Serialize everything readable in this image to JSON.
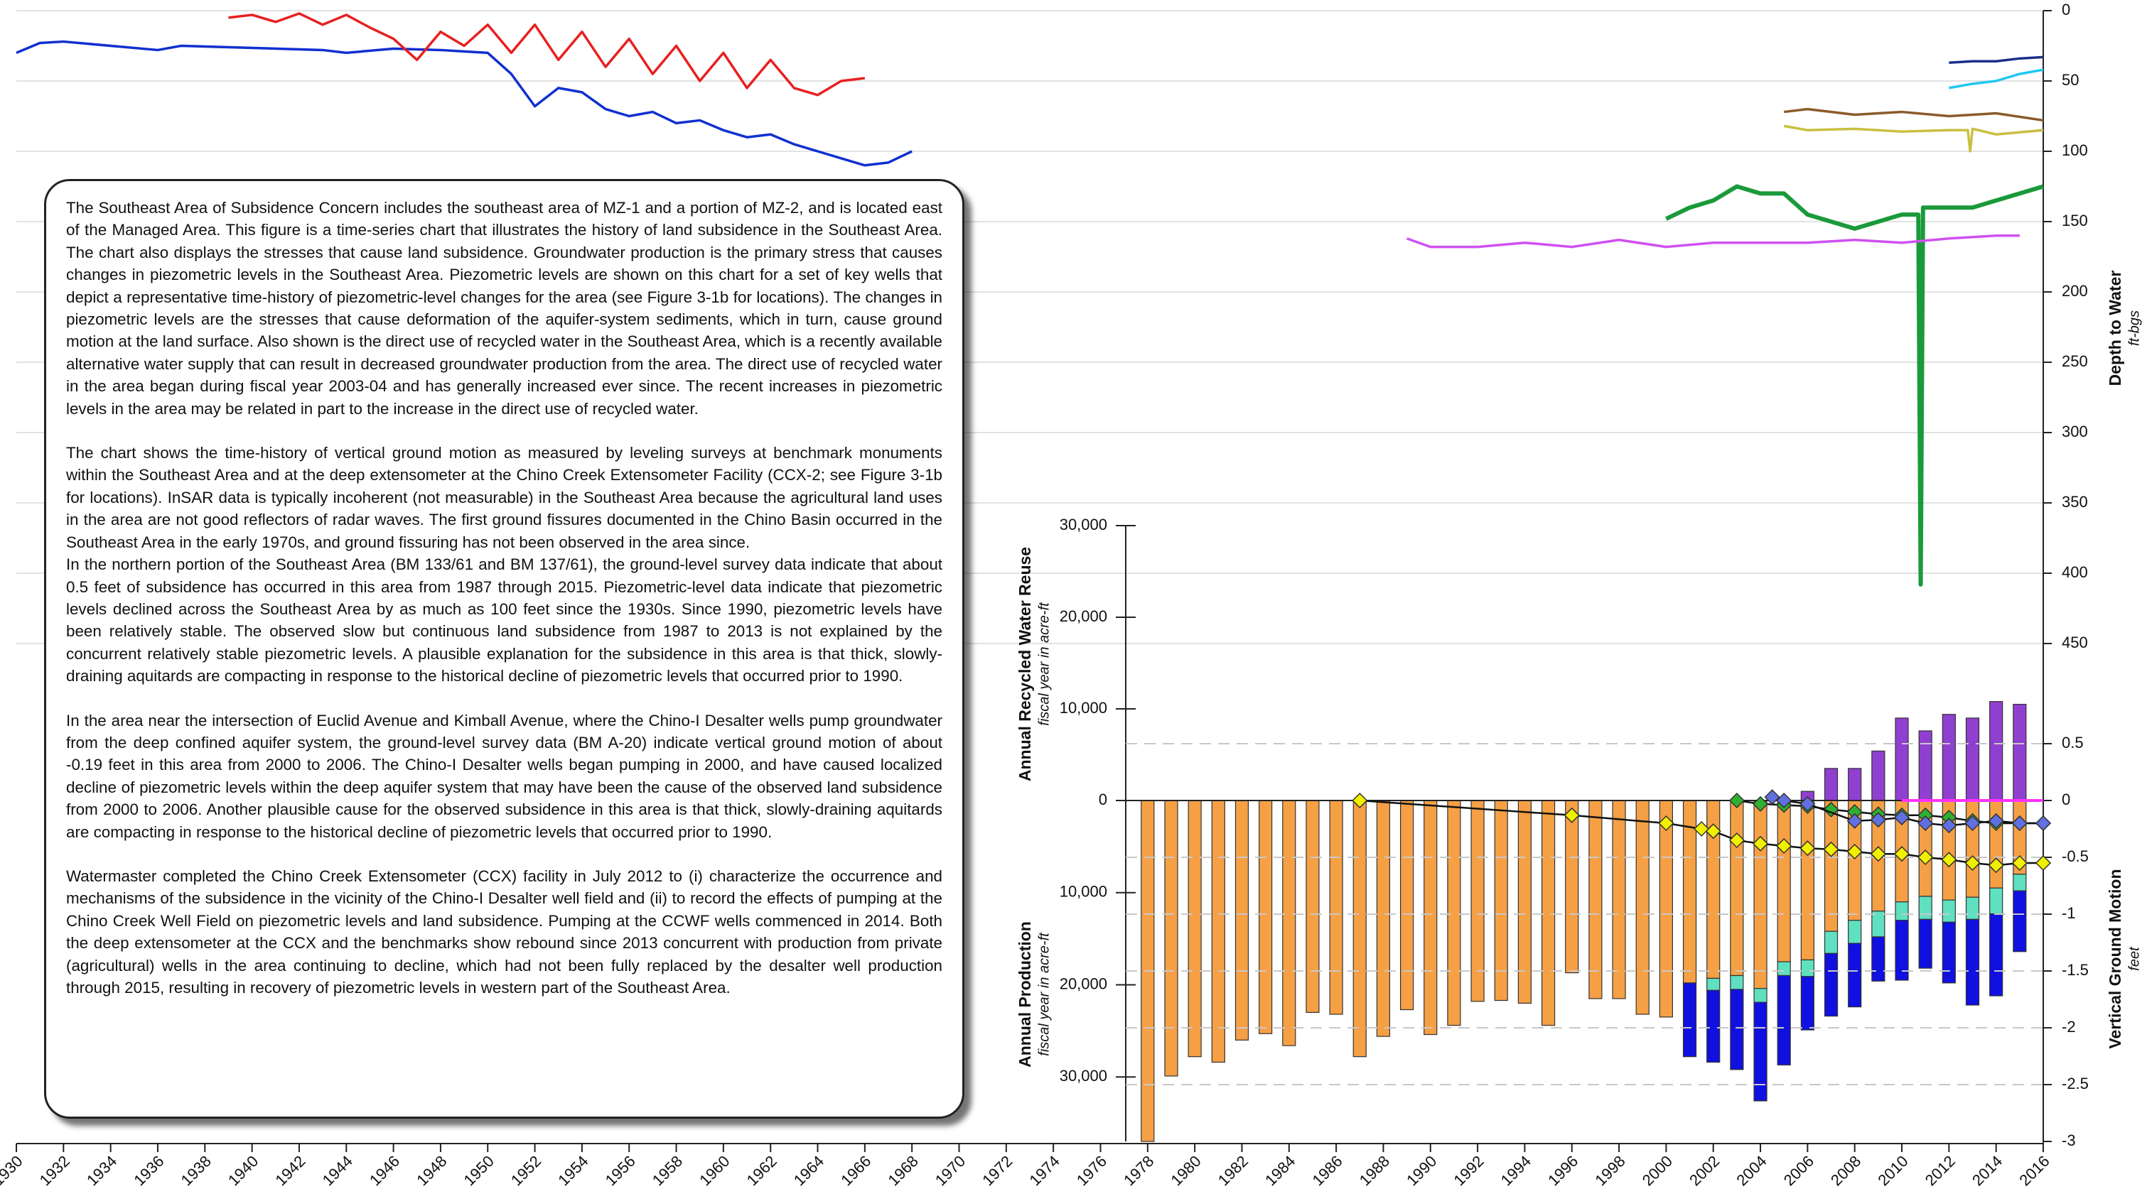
{
  "text_box": {
    "paragraphs": [
      "The Southeast Area of Subsidence Concern includes the southeast area of MZ-1 and a portion of MZ-2, and is located east of the Managed Area. This figure is a time-series chart that illustrates the history of land subsidence in the Southeast Area. The chart also displays the stresses that cause land subsidence. Groundwater production is the primary stress that causes changes in piezometric levels in the Southeast Area. Piezometric levels are shown on this chart for a set of key wells that depict a representative time-history of piezometric-level changes for the area (see Figure 3-1b for locations). The changes in piezometric levels are the stresses that cause deformation of the aquifer-system sediments, which in turn, cause ground motion at the land surface. Also shown is the direct use of recycled water in the Southeast Area, which is a recently available alternative water supply that can result in decreased groundwater production from the area. The direct use of recycled water in the area began during fiscal year 2003-04 and has generally increased ever since. The recent increases in piezometric levels in the area may be related in part to the increase in the direct use of recycled water.",
      "The chart shows the time-history of vertical ground motion as measured by leveling surveys at benchmark monuments within the Southeast Area and at the deep extensometer at the Chino Creek Extensometer Facility (CCX-2; see Figure 3-1b for locations). InSAR data is typically incoherent (not measurable) in the Southeast Area because the agricultural land uses in the area are not good reflectors of radar waves. The first ground fissures documented in the Chino Basin occurred in the Southeast Area in the early 1970s, and ground fissuring has not been observed in the area since.",
      "In the northern portion of the Southeast Area (BM 133/61 and BM 137/61), the ground-level survey data indicate that about 0.5 feet of subsidence has occurred in this area from 1987 through 2015. Piezometric-level data indicate that piezometric levels declined across the Southeast Area by as much as 100 feet since the 1930s.  Since 1990, piezometric levels have been relatively stable. The observed slow but continuous land subsidence from 1987 to 2013 is not explained by the concurrent relatively stable piezometric levels. A plausible explanation for the subsidence in this area is that thick, slowly-draining aquitards are compacting in response to the historical decline of piezometric levels that occurred prior to 1990.",
      "In the area near the intersection of Euclid Avenue and Kimball Avenue, where the Chino-I Desalter wells pump groundwater from the deep confined aquifer system, the ground-level survey data (BM A-20) indicate vertical ground motion of about -0.19 feet in this area from 2000 to 2006. The Chino-I Desalter wells began pumping in 2000, and have caused localized decline of piezometric levels within the deep aquifer system that may have been the cause of the observed land subsidence from 2000 to 2006. Another plausible cause for the observed subsidence in this area is that thick, slowly-draining aquitards are compacting in response to the historical decline of piezometric levels that occurred prior to 1990.",
      "Watermaster completed the Chino Creek Extensometer (CCX) facility in July 2012 to (i) characterize the occurrence and mechanisms of the subsidence in the vicinity of the Chino-I Desalter well field and (ii) to record the effects of pumping at the Chino Creek Well Field on piezometric levels and land subsidence. Pumping at the CCWF wells commenced in 2014. Both the deep extensometer at the CCX and the benchmarks show rebound since 2013 concurrent with production from private (agricultural) wells in the area continuing to decline, which had not been fully replaced by the desalter well production through 2015, resulting in recovery of piezometric levels in western part of the Southeast Area."
    ]
  },
  "chart_data": [
    {
      "type": "line",
      "ylabel": "Depth to Water",
      "ysublabel": "ft-bgs",
      "y_inverted": true,
      "grid": true,
      "xlim": [
        1930,
        2016
      ],
      "xticks": [
        1930,
        1932,
        1934,
        1936,
        1938,
        1940,
        1942,
        1944,
        1946,
        1948,
        1950,
        1952,
        1954,
        1956,
        1958,
        1960,
        1962,
        1964,
        1966,
        1968,
        1970,
        1972,
        1974,
        1976,
        1978,
        1980,
        1982,
        1984,
        1986,
        1988,
        1990,
        1992,
        1994,
        1996,
        1998,
        2000,
        2002,
        2004,
        2006,
        2008,
        2010,
        2012,
        2014,
        2016
      ],
      "ylim": [
        0,
        450
      ],
      "yticks": [
        0,
        50,
        100,
        150,
        200,
        250,
        300,
        350,
        400,
        450
      ],
      "series": [
        {
          "color": "#1030d0",
          "x": [
            1930,
            1931,
            1932,
            1936,
            1937,
            1943,
            1944,
            1946,
            1948,
            1950,
            1951,
            1952,
            1953,
            1954,
            1955,
            1956,
            1957,
            1958,
            1959,
            1960,
            1961,
            1962,
            1963,
            1964,
            1965,
            1966,
            1967,
            1968
          ],
          "values": [
            30,
            23,
            22,
            28,
            25,
            28,
            30,
            27,
            28,
            30,
            45,
            68,
            55,
            58,
            70,
            75,
            72,
            80,
            78,
            85,
            90,
            88,
            95,
            100,
            105,
            110,
            108,
            100
          ]
        },
        {
          "color": "#e82020",
          "x": [
            1939,
            1940,
            1941,
            1942,
            1943,
            1944,
            1945,
            1946,
            1947,
            1948,
            1949,
            1950,
            1951,
            1952,
            1953,
            1954,
            1955,
            1956,
            1957,
            1958,
            1959,
            1960,
            1961,
            1962,
            1963,
            1964,
            1965,
            1966
          ],
          "values": [
            5,
            3,
            8,
            2,
            10,
            3,
            12,
            20,
            35,
            15,
            25,
            10,
            30,
            10,
            35,
            15,
            40,
            20,
            45,
            25,
            50,
            30,
            55,
            35,
            55,
            60,
            50,
            48
          ]
        },
        {
          "color": "#1a2f8a",
          "x": [
            2012,
            2013,
            2014,
            2015,
            2016
          ],
          "values": [
            37,
            36,
            36,
            34,
            33
          ]
        },
        {
          "color": "#20c8f0",
          "x": [
            2012,
            2013,
            2014,
            2015,
            2016
          ],
          "values": [
            55,
            52,
            50,
            45,
            42
          ]
        },
        {
          "color": "#8b5a2b",
          "x": [
            2005,
            2006,
            2008,
            2010,
            2012,
            2014,
            2016
          ],
          "values": [
            72,
            70,
            74,
            72,
            75,
            73,
            78
          ]
        },
        {
          "color": "#c8c040",
          "x": [
            2005,
            2006,
            2008,
            2010,
            2012,
            2012.8,
            2012.9,
            2013,
            2014,
            2016
          ],
          "values": [
            82,
            85,
            84,
            86,
            85,
            85,
            100,
            84,
            88,
            85
          ]
        },
        {
          "color": "#1a9a3a",
          "x": [
            2000,
            2001,
            2002,
            2003,
            2004,
            2005,
            2006,
            2007,
            2008,
            2009,
            2010,
            2010.7,
            2010.8,
            2010.9,
            2012,
            2013,
            2014,
            2015,
            2016
          ],
          "values": [
            148,
            140,
            135,
            125,
            130,
            130,
            145,
            150,
            155,
            150,
            145,
            145,
            408,
            140,
            140,
            140,
            135,
            130,
            125
          ]
        },
        {
          "color": "#d050f0",
          "x": [
            1989,
            1990,
            1992,
            1994,
            1996,
            1998,
            2000,
            2002,
            2004,
            2006,
            2008,
            2010,
            2012,
            2014,
            2015
          ],
          "values": [
            162,
            168,
            168,
            165,
            168,
            163,
            168,
            165,
            165,
            165,
            163,
            165,
            162,
            160,
            160
          ]
        }
      ]
    },
    {
      "type": "bar",
      "ylabel": "Annual Recycled Water Reuse",
      "ysublabel": "fiscal year in acre-ft",
      "y2label": "Annual Production",
      "y2sublabel": "fiscal year in acre-ft",
      "ylim": [
        0,
        30000
      ],
      "yticks": [
        0,
        {
          "value": 10000,
          "label": "10,000"
        },
        {
          "value": 20000,
          "label": "20,000"
        },
        {
          "value": 30000,
          "label": "30,000"
        }
      ],
      "y2lim": [
        0,
        37000
      ],
      "y2_inverted": true,
      "y2ticks": [
        {
          "value": 10000,
          "label": "10,000"
        },
        {
          "value": 20000,
          "label": "20,000"
        },
        {
          "value": 30000,
          "label": "30,000"
        }
      ],
      "stacked": true,
      "series": [
        {
          "color": "#f5a045",
          "axis": "y2",
          "x": [
            1978,
            1979,
            1980,
            1981,
            1982,
            1983,
            1984,
            1985,
            1986,
            1987,
            1988,
            1989,
            1990,
            1991,
            1992,
            1993,
            1994,
            1995,
            1996,
            1997,
            1998,
            1999,
            2000,
            2001,
            2002,
            2003,
            2004,
            2005,
            2006,
            2007,
            2008,
            2009,
            2010,
            2011,
            2012,
            2013,
            2014,
            2015
          ],
          "values": [
            37000,
            29900,
            27800,
            28400,
            26000,
            25300,
            26600,
            23000,
            23200,
            27800,
            25600,
            22700,
            25400,
            24400,
            21800,
            21700,
            22000,
            24400,
            18700,
            21500,
            21500,
            23200,
            23500,
            19800,
            19300,
            19000,
            20400,
            17500,
            17300,
            14200,
            13000,
            12000,
            11000,
            10400,
            10800,
            10500,
            9500,
            8000
          ]
        },
        {
          "color": "#5fe0c0",
          "axis": "y2",
          "x": [
            2001,
            2002,
            2003,
            2004,
            2005,
            2006,
            2007,
            2008,
            2009,
            2010,
            2011,
            2012,
            2013,
            2014,
            2015
          ],
          "values": [
            0,
            1300,
            1500,
            1500,
            1500,
            1800,
            2400,
            2500,
            2800,
            2000,
            2500,
            2400,
            2400,
            2800,
            1800
          ]
        },
        {
          "color": "#1010e0",
          "axis": "y2",
          "x": [
            2001,
            2002,
            2003,
            2004,
            2005,
            2006,
            2007,
            2008,
            2009,
            2010,
            2011,
            2012,
            2013,
            2014,
            2015
          ],
          "values": [
            8000,
            7800,
            8700,
            10700,
            9700,
            5800,
            6800,
            6900,
            4800,
            6500,
            5300,
            6600,
            9300,
            8900,
            6600
          ]
        },
        {
          "color": "#9040d0",
          "axis": "y",
          "x": [
            2006,
            2007,
            2008,
            2009,
            2010,
            2011,
            2012,
            2013,
            2014,
            2015
          ],
          "values": [
            1000,
            3500,
            3500,
            5400,
            9000,
            7600,
            9400,
            9000,
            10800,
            10500
          ]
        }
      ]
    },
    {
      "type": "line",
      "ylabel": "Vertical Ground Motion",
      "ysublabel": "feet",
      "grid": true,
      "ylim": [
        -3,
        0.5
      ],
      "yticks": [
        0.5,
        0,
        -0.5,
        -1,
        -1.5,
        -2,
        -2.5,
        -3
      ],
      "series": [
        {
          "color": "#f0f000",
          "marker": "diamond",
          "x": [
            1987,
            1996,
            2000,
            2001.5,
            2002,
            2003,
            2004,
            2005,
            2006,
            2007,
            2008,
            2009,
            2010,
            2011,
            2012,
            2013,
            2014,
            2015,
            2016
          ],
          "values": [
            0,
            -0.13,
            -0.2,
            -0.25,
            -0.27,
            -0.35,
            -0.38,
            -0.4,
            -0.42,
            -0.43,
            -0.45,
            -0.47,
            -0.47,
            -0.5,
            -0.52,
            -0.55,
            -0.57,
            -0.55,
            -0.55
          ]
        },
        {
          "color": "#30b030",
          "marker": "diamond",
          "x": [
            2003,
            2004,
            2005,
            2006,
            2007,
            2008,
            2009,
            2010,
            2011,
            2012,
            2013,
            2014,
            2015,
            2016
          ],
          "values": [
            0,
            -0.03,
            -0.04,
            -0.05,
            -0.08,
            -0.1,
            -0.12,
            -0.13,
            -0.13,
            -0.15,
            -0.18,
            -0.2,
            -0.2,
            -0.2
          ]
        },
        {
          "color": "#6070e0",
          "marker": "diamond",
          "x": [
            2004.5,
            2005,
            2006,
            2008,
            2009,
            2010,
            2011,
            2012,
            2013,
            2014,
            2015,
            2016
          ],
          "values": [
            0.03,
            0,
            -0.03,
            -0.18,
            -0.17,
            -0.15,
            -0.2,
            -0.22,
            -0.2,
            -0.18,
            -0.2,
            -0.2
          ]
        },
        {
          "color": "#ff30ff",
          "x": [
            2010,
            2012.5,
            2016
          ],
          "values": [
            0,
            0,
            0
          ]
        }
      ]
    }
  ]
}
